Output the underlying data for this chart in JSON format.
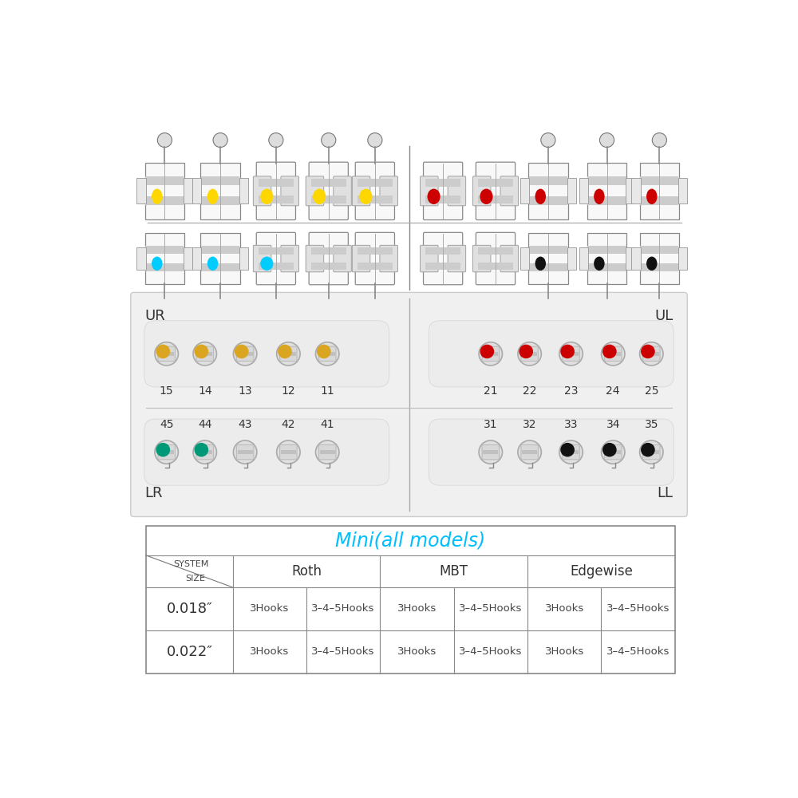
{
  "bg_color": "#ffffff",
  "upper_icon_row_colors_left": [
    "#FFD700",
    "#FFD700",
    "#FFD700",
    "#FFD700",
    "#FFD700"
  ],
  "upper_icon_row_colors_right": [
    "#CC0000",
    "#CC0000",
    "#CC0000",
    "#CC0000",
    "#CC0000"
  ],
  "lower_icon_row_colors_left": [
    "#00CCFF",
    "#00CCFF",
    "#00CCFF",
    null,
    null
  ],
  "lower_icon_row_colors_right": [
    null,
    null,
    "#111111",
    "#111111",
    "#111111"
  ],
  "jaw_panel_bg": "#f2f2f2",
  "jaw_panel_border": "#cccccc",
  "UR_label": "UR",
  "UL_label": "UL",
  "LR_label": "LR",
  "LL_label": "LL",
  "upper_numbers_left": [
    "15",
    "14",
    "13",
    "12",
    "11"
  ],
  "upper_numbers_right": [
    "21",
    "22",
    "23",
    "24",
    "25"
  ],
  "lower_numbers_left": [
    "45",
    "44",
    "43",
    "42",
    "41"
  ],
  "lower_numbers_right": [
    "31",
    "32",
    "33",
    "34",
    "35"
  ],
  "upper_left_dot_colors": [
    "#DAA520",
    "#DAA520",
    "#DAA520",
    "#DAA520",
    "#DAA520"
  ],
  "upper_right_dot_colors": [
    "#CC0000",
    "#CC0000",
    "#CC0000",
    "#CC0000",
    "#CC0000"
  ],
  "lower_left_dot_colors": [
    "#009977",
    "#009977",
    null,
    null,
    null
  ],
  "lower_right_dot_colors": [
    null,
    null,
    "#111111",
    "#111111",
    "#111111"
  ],
  "table_title": "Mini(all models)",
  "table_title_color": "#00BFFF",
  "table_systems": [
    "Roth",
    "MBT",
    "Edgewise"
  ],
  "table_sizes": [
    "0.018″",
    "0.022″"
  ],
  "table_cells": [
    [
      "3Hooks",
      "3–4–5Hooks",
      "3Hooks",
      "3–4–5Hooks",
      "3Hooks",
      "3–4–5Hooks"
    ],
    [
      "3Hooks",
      "3–4–5Hooks",
      "3Hooks",
      "3–4–5Hooks",
      "3Hooks",
      "3–4–5Hooks"
    ]
  ]
}
